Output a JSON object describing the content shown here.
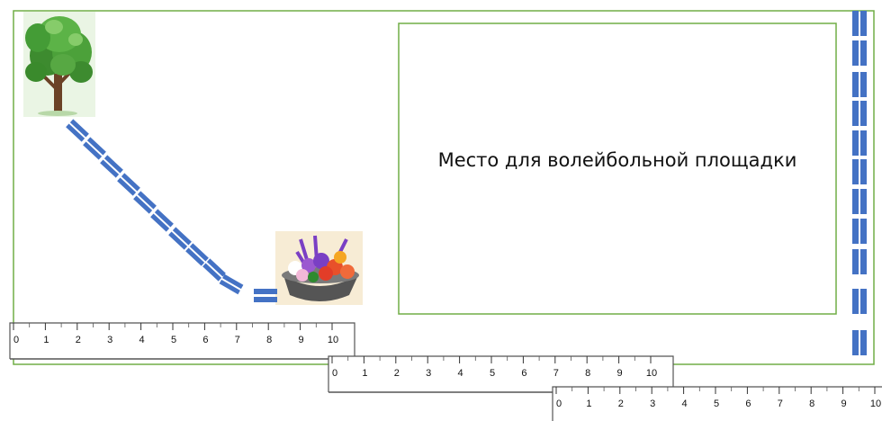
{
  "court": {
    "label": "Место для волейбольной площадки"
  },
  "rulers": [
    {
      "name": "ruler-1",
      "ticks": [
        "0",
        "1",
        "2",
        "3",
        "4",
        "5",
        "6",
        "7",
        "8",
        "9",
        "10"
      ]
    },
    {
      "name": "ruler-2",
      "ticks": [
        "0",
        "1",
        "2",
        "3",
        "4",
        "5",
        "6",
        "7",
        "8",
        "9",
        "10"
      ]
    },
    {
      "name": "ruler-3",
      "ticks": [
        "0",
        "1",
        "2",
        "3",
        "4",
        "5",
        "6",
        "7",
        "8",
        "9",
        "10"
      ]
    }
  ],
  "icons": {
    "tree": "tree-icon",
    "flowers": "flower-pot-icon"
  },
  "colors": {
    "border": "#70ad47",
    "path_blue": "#4472c4",
    "ruler_line": "#555555"
  }
}
